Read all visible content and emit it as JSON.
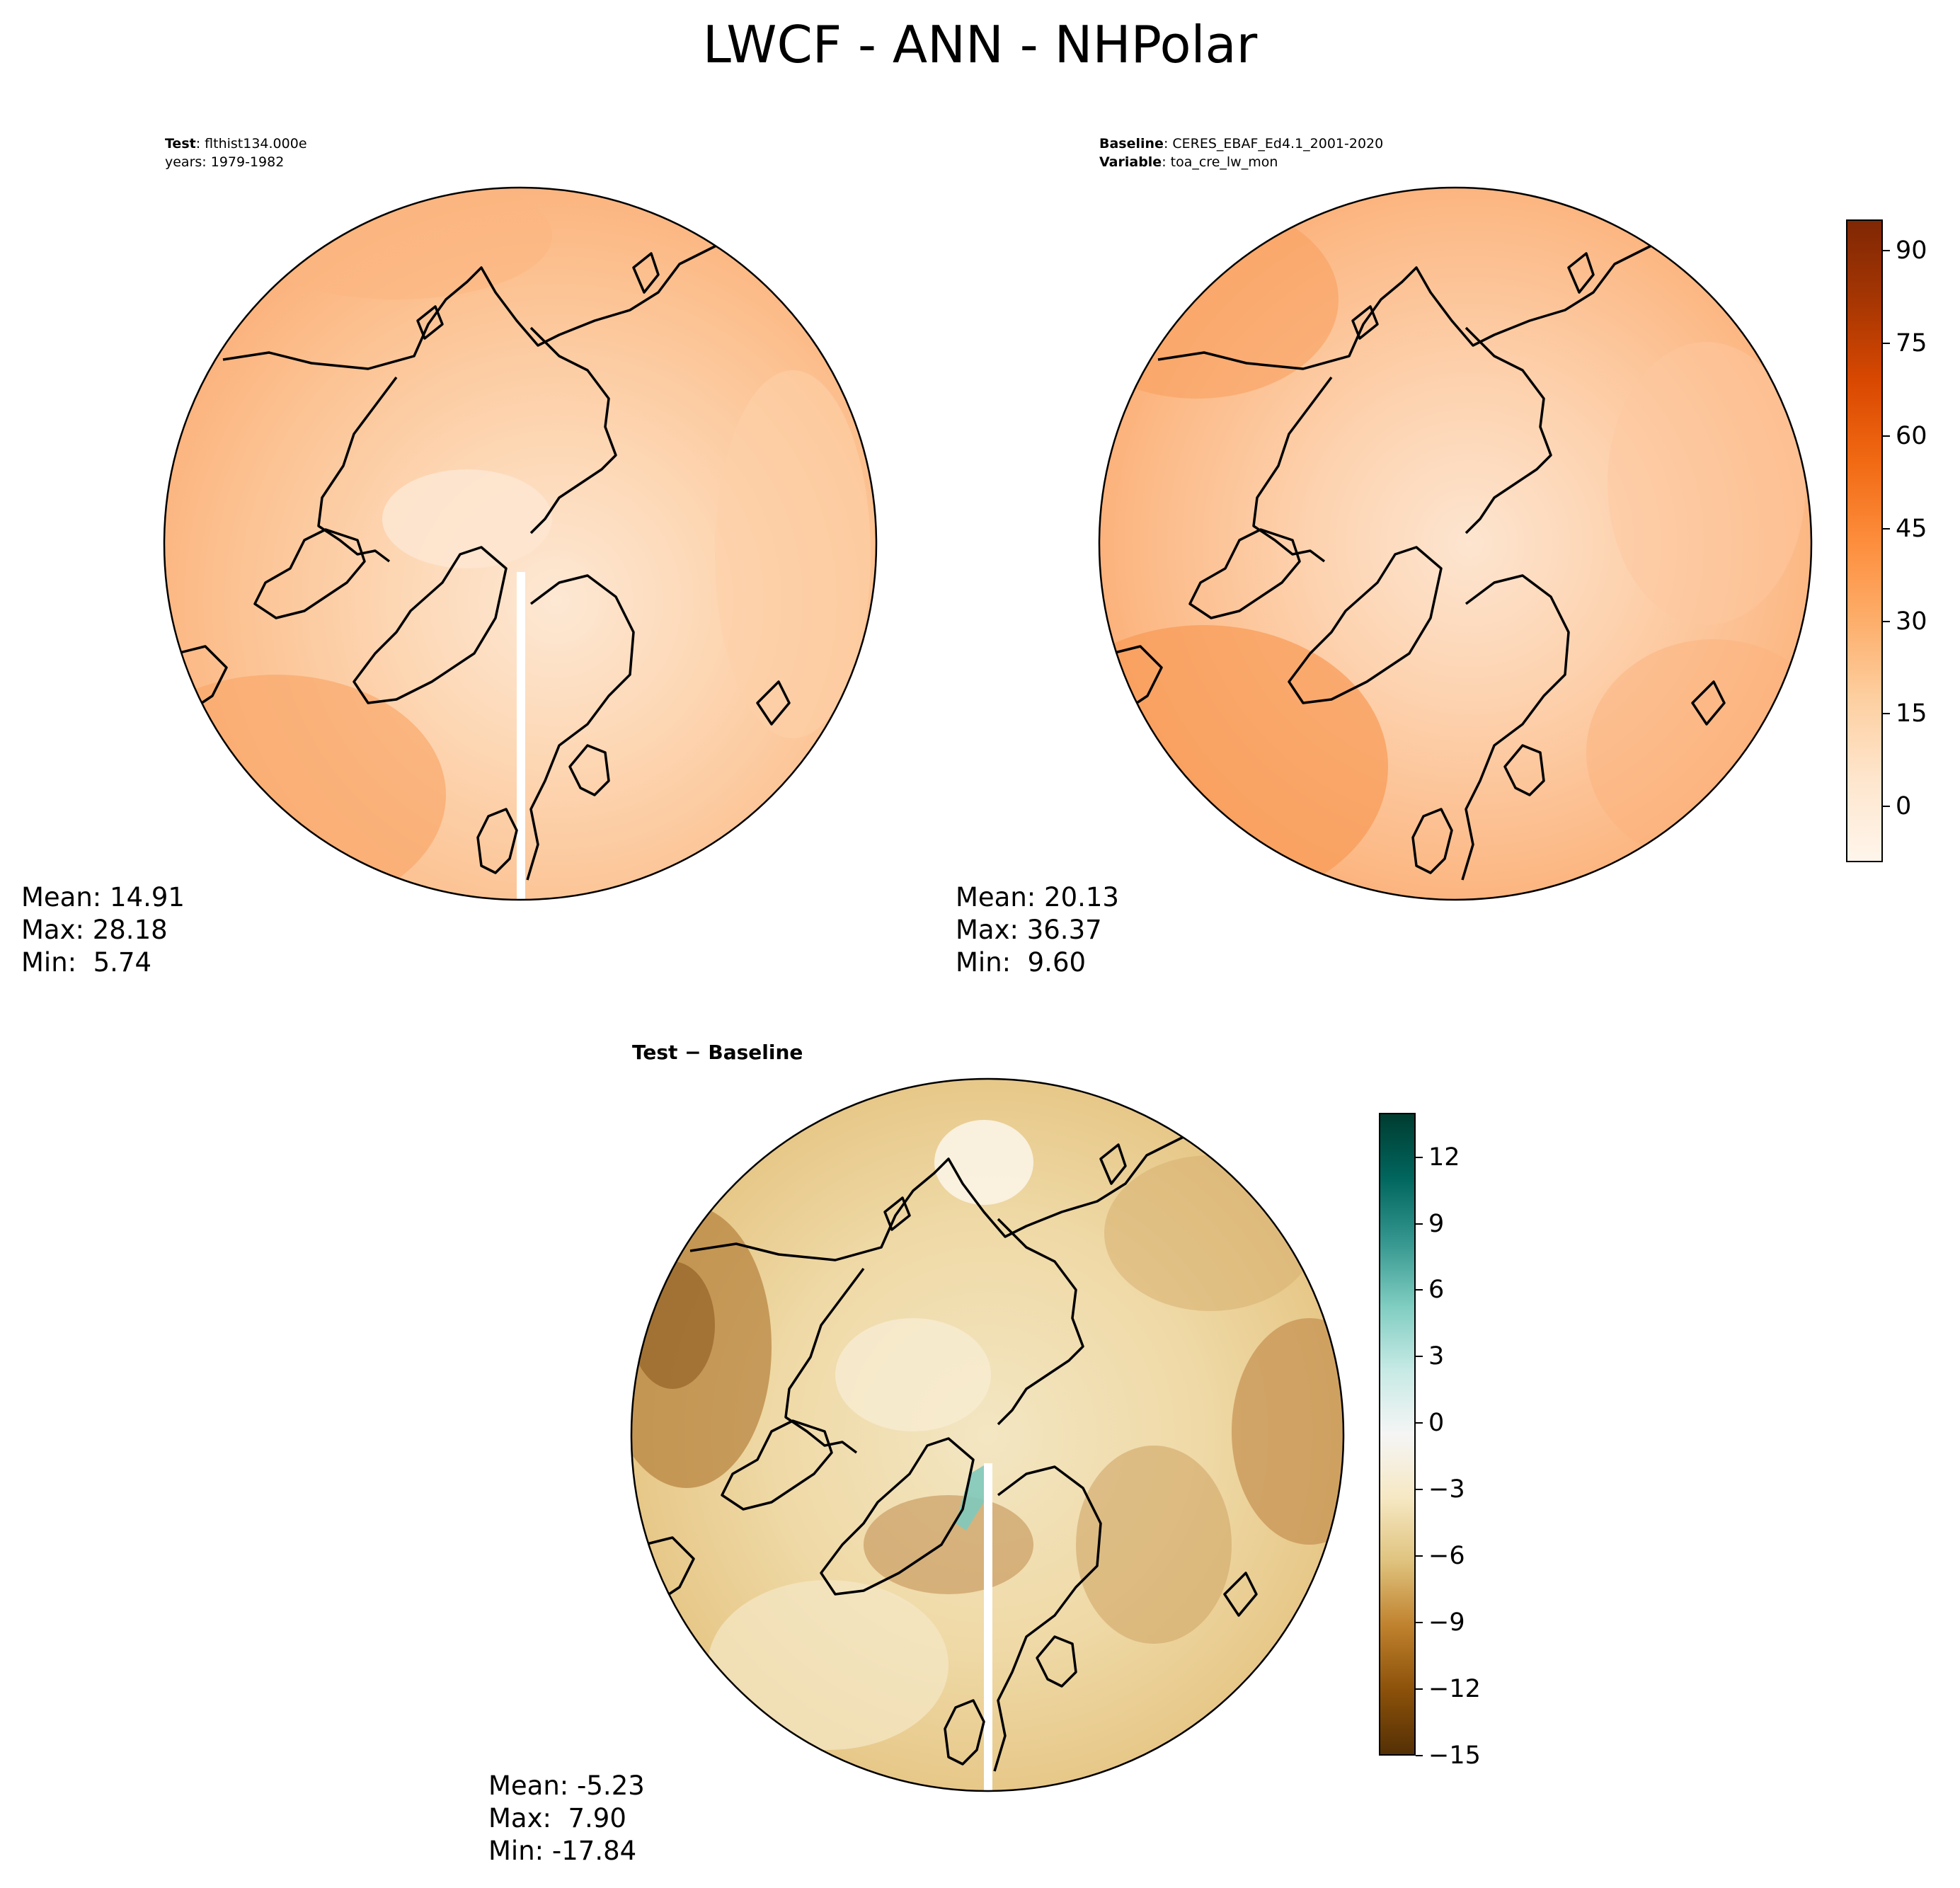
{
  "figure": {
    "title": "LWCF - ANN - NHPolar"
  },
  "panels": {
    "test": {
      "header_line1_label": "Test",
      "header_line1_value": ": flthist134.000e",
      "header_line2": "years: 1979-1982",
      "stats": {
        "mean": "Mean: 14.91",
        "max": "Max: 28.18",
        "min": "Min:  5.74"
      }
    },
    "baseline": {
      "header_line1_label": "Baseline",
      "header_line1_value": ": CERES_EBAF_Ed4.1_2001-2020",
      "header_line2_label": "Variable",
      "header_line2_value": ": toa_cre_lw_mon",
      "stats": {
        "mean": "Mean: 20.13",
        "max": "Max: 36.37",
        "min": "Min:  9.60"
      }
    },
    "difference": {
      "title_left": "Test",
      "title_sep": " − ",
      "title_right": "Baseline",
      "stats": {
        "mean": "Mean: -5.23",
        "max": "Max:  7.90",
        "min": "Min: -17.84"
      }
    }
  },
  "colorbars": {
    "main": {
      "colormap": "Oranges",
      "range": [
        -9,
        95
      ],
      "ticks": [
        "90",
        "75",
        "60",
        "45",
        "30",
        "15",
        "0"
      ],
      "tick_values": [
        90,
        75,
        60,
        45,
        30,
        15,
        0
      ],
      "colors": [
        "#fff5eb",
        "#fee6ce",
        "#fdd0a2",
        "#fdae6b",
        "#fd8d3c",
        "#f16913",
        "#d94801",
        "#a63603",
        "#7f2704"
      ]
    },
    "diff": {
      "colormap": "BrBG",
      "range": [
        -15,
        14
      ],
      "ticks": [
        "12",
        "9",
        "6",
        "3",
        "0",
        "−3",
        "−6",
        "−9",
        "−12",
        "−15"
      ],
      "tick_values": [
        12,
        9,
        6,
        3,
        0,
        -3,
        -6,
        -9,
        -12,
        -15
      ],
      "colors": [
        "#543005",
        "#8c510a",
        "#bf812d",
        "#dfc27d",
        "#f6e8c3",
        "#f5f5f5",
        "#c7eae5",
        "#80cdc1",
        "#35978f",
        "#01665e",
        "#003c30"
      ]
    }
  }
}
